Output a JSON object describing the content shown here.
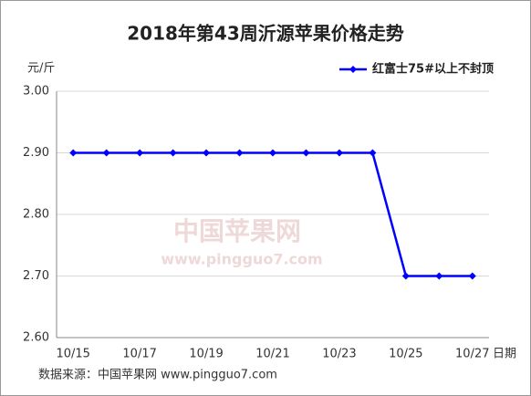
{
  "chart_data": {
    "type": "line",
    "title": "2018年第43周沂源苹果价格走势",
    "y_label": "元/斤",
    "x_label": "日期",
    "source": "数据来源：中国苹果网 www.pingguo7.com",
    "watermark": "中国苹果网",
    "watermark_url": "www.pingguo7.com",
    "categories": [
      "10/15",
      null,
      "10/17",
      null,
      "10/19",
      null,
      "10/21",
      null,
      "10/23",
      null,
      "10/25",
      null,
      "10/27"
    ],
    "series": [
      {
        "name": "红富士75#以上不封顶",
        "color": "#0000ff",
        "values": [
          2.9,
          2.9,
          2.9,
          2.9,
          2.9,
          2.9,
          2.9,
          2.9,
          2.9,
          2.9,
          2.7,
          2.7,
          2.7
        ]
      }
    ],
    "ylim": [
      2.6,
      3.0
    ],
    "yticks": [
      {
        "value": 2.6,
        "label": "2.60"
      },
      {
        "value": 2.7,
        "label": "2.70"
      },
      {
        "value": 2.8,
        "label": "2.80"
      },
      {
        "value": 2.9,
        "label": "2.90"
      },
      {
        "value": 3.0,
        "label": "3.00"
      }
    ],
    "grid": true,
    "legend": "top-right"
  }
}
